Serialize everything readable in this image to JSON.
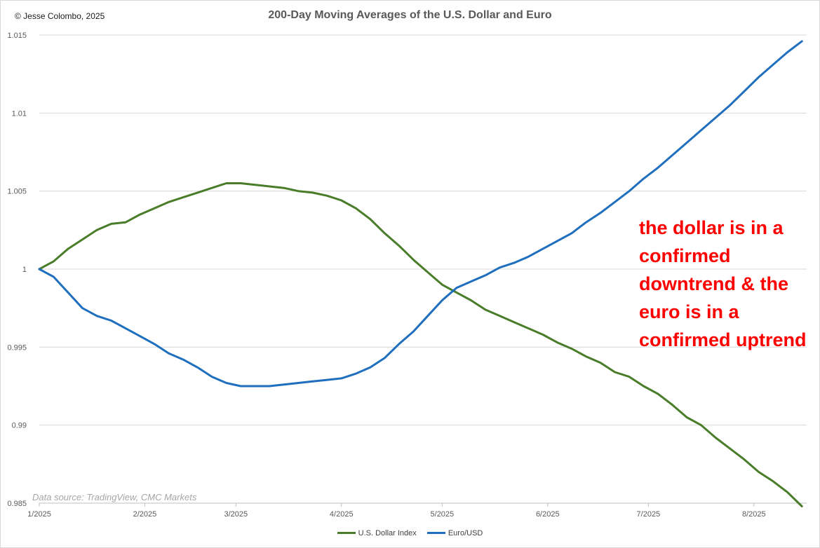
{
  "copyright": "© Jesse Colombo, 2025",
  "annotation": "the dollar is in a\nconfirmed\ndowntrend & the\neuro is in a\nconfirmed uptrend",
  "colors": {
    "usd": "#4a7d2a",
    "eur": "#1f6fbe",
    "annotation": "#ff0000",
    "grid": "#d9d9d9"
  },
  "chart_data": {
    "type": "line",
    "title": "200-Day Moving Averages of the U.S. Dollar and Euro",
    "source": "Data source: TradingView, CMC Markets",
    "xlabel": "",
    "ylabel": "",
    "ylim": [
      0.985,
      1.015
    ],
    "grid": true,
    "legend_position": "bottom-center",
    "y_ticks": [
      {
        "value": 0.985,
        "label": "0.985"
      },
      {
        "value": 0.99,
        "label": "0.99"
      },
      {
        "value": 0.995,
        "label": "0.995"
      },
      {
        "value": 1.0,
        "label": "1"
      },
      {
        "value": 1.005,
        "label": "1.005"
      },
      {
        "value": 1.01,
        "label": "1.01"
      },
      {
        "value": 1.015,
        "label": "1.015"
      }
    ],
    "x_domain": [
      0,
      160
    ],
    "x_ticks": [
      {
        "value": 0,
        "label": "1/2025"
      },
      {
        "value": 22,
        "label": "2/2025"
      },
      {
        "value": 41,
        "label": "3/2025"
      },
      {
        "value": 63,
        "label": "4/2025"
      },
      {
        "value": 84,
        "label": "5/2025"
      },
      {
        "value": 106,
        "label": "6/2025"
      },
      {
        "value": 127,
        "label": "7/2025"
      },
      {
        "value": 149,
        "label": "8/2025"
      }
    ],
    "series": [
      {
        "name": "U.S. Dollar Index",
        "x": [
          0,
          3,
          6,
          9,
          12,
          15,
          18,
          21,
          24,
          27,
          30,
          33,
          36,
          39,
          42,
          45,
          48,
          51,
          54,
          57,
          60,
          63,
          66,
          69,
          72,
          75,
          78,
          81,
          84,
          87,
          90,
          93,
          96,
          99,
          102,
          105,
          108,
          111,
          114,
          117,
          120,
          123,
          126,
          129,
          132,
          135,
          138,
          141,
          144,
          147,
          150,
          153,
          156,
          159
        ],
        "values": [
          1.0,
          1.0005,
          1.0013,
          1.0019,
          1.0025,
          1.0029,
          1.003,
          1.0035,
          1.0039,
          1.0043,
          1.0046,
          1.0049,
          1.0052,
          1.0055,
          1.0055,
          1.0054,
          1.0053,
          1.0052,
          1.005,
          1.0049,
          1.0047,
          1.0044,
          1.0039,
          1.0032,
          1.0023,
          1.0015,
          1.0006,
          0.9998,
          0.999,
          0.9985,
          0.998,
          0.9974,
          0.997,
          0.9966,
          0.9962,
          0.9958,
          0.9953,
          0.9949,
          0.9944,
          0.994,
          0.9934,
          0.9931,
          0.9925,
          0.992,
          0.9913,
          0.9905,
          0.99,
          0.9892,
          0.9885,
          0.9878,
          0.987,
          0.9864,
          0.9857,
          0.9848
        ]
      },
      {
        "name": "Euro/USD",
        "x": [
          0,
          3,
          6,
          9,
          12,
          15,
          18,
          21,
          24,
          27,
          30,
          33,
          36,
          39,
          42,
          45,
          48,
          51,
          54,
          57,
          60,
          63,
          66,
          69,
          72,
          75,
          78,
          81,
          84,
          87,
          90,
          93,
          96,
          99,
          102,
          105,
          108,
          111,
          114,
          117,
          120,
          123,
          126,
          129,
          132,
          135,
          138,
          141,
          144,
          147,
          150,
          153,
          156,
          159
        ],
        "values": [
          1.0,
          0.9995,
          0.9985,
          0.9975,
          0.997,
          0.9967,
          0.9962,
          0.9957,
          0.9952,
          0.9946,
          0.9942,
          0.9937,
          0.9931,
          0.9927,
          0.9925,
          0.9925,
          0.9925,
          0.9926,
          0.9927,
          0.9928,
          0.9929,
          0.993,
          0.9933,
          0.9937,
          0.9943,
          0.9952,
          0.996,
          0.997,
          0.998,
          0.9988,
          0.9992,
          0.9996,
          1.0001,
          1.0004,
          1.0008,
          1.0013,
          1.0018,
          1.0023,
          1.003,
          1.0036,
          1.0043,
          1.005,
          1.0058,
          1.0065,
          1.0073,
          1.0081,
          1.0089,
          1.0097,
          1.0105,
          1.0114,
          1.0123,
          1.0131,
          1.0139,
          1.0146
        ]
      }
    ]
  }
}
